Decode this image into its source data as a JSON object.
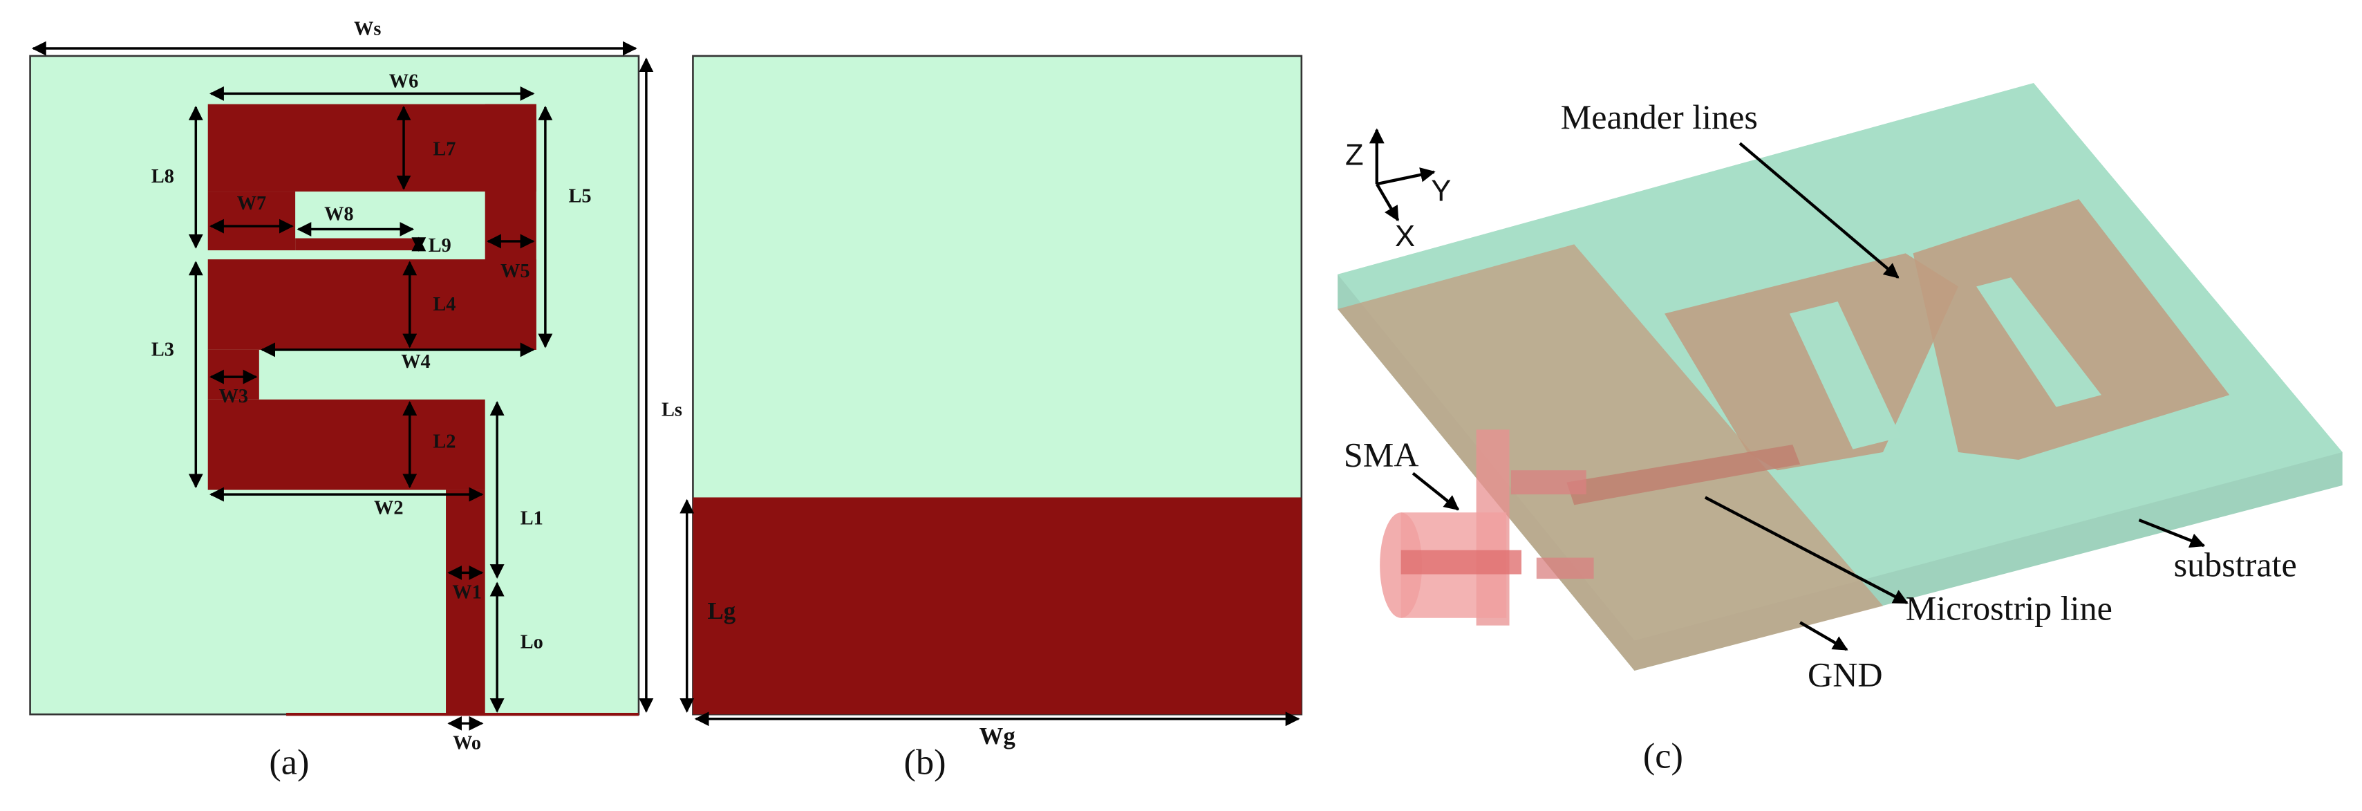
{
  "panel_a": {
    "caption": "(a)",
    "labels": {
      "ws": "Ws",
      "w6": "W6",
      "l7": "L7",
      "l8": "L8",
      "w7": "W7",
      "w8": "W8",
      "l9": "L9",
      "l5": "L5",
      "w5": "W5",
      "l4": "L4",
      "l3": "L3",
      "w4": "W4",
      "w3": "W3",
      "l2": "L2",
      "w2": "W2",
      "l1": "L1",
      "w1": "W1",
      "lo": "Lo",
      "wo": "Wo",
      "ls": "Ls"
    }
  },
  "panel_b": {
    "caption": "(b)",
    "labels": {
      "lg": "Lg",
      "wg": "Wg"
    }
  },
  "panel_c": {
    "caption": "(c)",
    "labels": {
      "meander": "Meander lines",
      "sma": "SMA",
      "substrate": "substrate",
      "microstrip": "Microstrip line",
      "gnd": "GND"
    },
    "axes": {
      "z": "Z",
      "y": "Y",
      "x": "X"
    }
  }
}
